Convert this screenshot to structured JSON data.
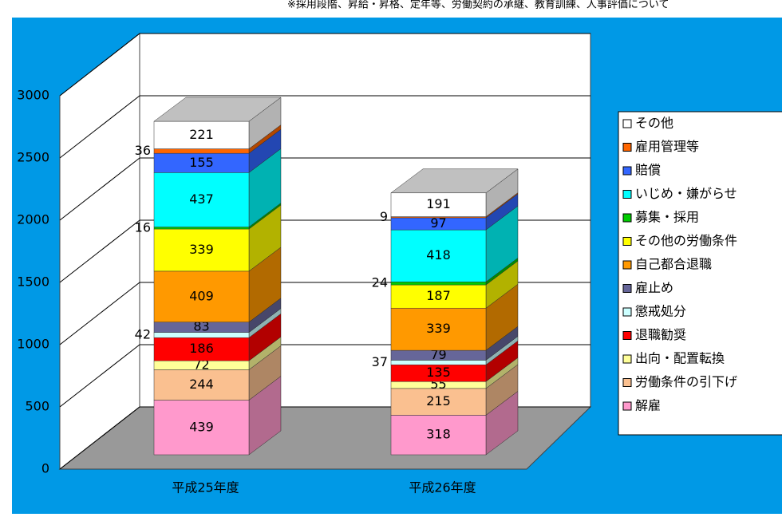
{
  "note_text": "※採用段階、昇給・昇格、定年等、労働契約の承継、教育訓練、人事評価について",
  "chart_data": {
    "type": "bar3d_stacked",
    "categories": [
      "平成25年度",
      "平成26年度"
    ],
    "series": [
      {
        "name": "解雇",
        "color": "#ff99cc",
        "values": [
          439,
          318
        ]
      },
      {
        "name": "労働条件の引下げ",
        "color": "#fac090",
        "values": [
          244,
          215
        ]
      },
      {
        "name": "出向・配置転換",
        "color": "#ffff99",
        "values": [
          72,
          55
        ]
      },
      {
        "name": "退職勧奨",
        "color": "#ff0000",
        "values": [
          186,
          135
        ]
      },
      {
        "name": "懲戒処分",
        "color": "#ccffff",
        "values": [
          42,
          37
        ]
      },
      {
        "name": "雇止め",
        "color": "#666699",
        "values": [
          83,
          79
        ]
      },
      {
        "name": "自己都合退職",
        "color": "#ff9900",
        "values": [
          409,
          339
        ]
      },
      {
        "name": "その他の労働条件",
        "color": "#ffff00",
        "values": [
          339,
          187
        ]
      },
      {
        "name": "募集・採用",
        "color": "#00cc00",
        "values": [
          16,
          24
        ]
      },
      {
        "name": "いじめ・嫌がらせ",
        "color": "#00ffff",
        "values": [
          437,
          418
        ]
      },
      {
        "name": "賠償",
        "color": "#3366ff",
        "values": [
          155,
          97
        ]
      },
      {
        "name": "雇用管理等",
        "color": "#ff6600",
        "values": [
          36,
          9
        ]
      },
      {
        "name": "その他",
        "color": "#ffffff",
        "values": [
          221,
          191
        ]
      }
    ],
    "ylim": [
      0,
      3000
    ],
    "yticks": [
      0,
      500,
      1000,
      1500,
      2000,
      2500,
      3000
    ],
    "grid": true,
    "legend": "right"
  }
}
